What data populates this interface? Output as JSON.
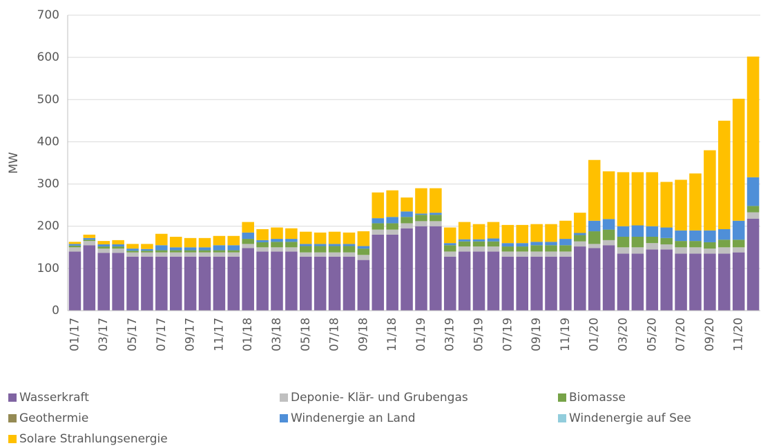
{
  "chart_data": {
    "type": "stacked_bar",
    "y_label": "MW",
    "categories": [
      "01/17",
      null,
      "03/17",
      null,
      "05/17",
      null,
      "07/17",
      null,
      "09/17",
      null,
      "11/17",
      null,
      "01/18",
      null,
      "03/18",
      null,
      "05/18",
      null,
      "07/18",
      null,
      "09/18",
      null,
      "11/18",
      null,
      "01/19",
      null,
      "03/19",
      null,
      "05/19",
      null,
      "07/19",
      null,
      "09/19",
      null,
      "11/19",
      null,
      "01/20",
      null,
      "03/20",
      null,
      "05/20",
      null,
      "07/20",
      null,
      "09/20",
      null,
      "11/20",
      null
    ],
    "ylim": [
      0,
      700
    ],
    "yticks": [
      0,
      100,
      200,
      300,
      400,
      500,
      600,
      700
    ],
    "grid": true,
    "series": [
      {
        "name": "Wasserkraft",
        "color": "#8064a2",
        "values": [
          140,
          155,
          137,
          137,
          128,
          128,
          128,
          128,
          128,
          128,
          128,
          128,
          148,
          140,
          140,
          140,
          128,
          128,
          128,
          128,
          120,
          180,
          180,
          195,
          200,
          200,
          128,
          140,
          140,
          140,
          128,
          128,
          128,
          128,
          128,
          152,
          148,
          155,
          135,
          135,
          145,
          145,
          135,
          135,
          135,
          135,
          138,
          218
        ]
      },
      {
        "name": "Deponie- Klär- und Grubengas",
        "color": "#c0c0c0",
        "values": [
          10,
          10,
          10,
          10,
          10,
          10,
          10,
          10,
          10,
          10,
          10,
          10,
          10,
          10,
          10,
          10,
          10,
          10,
          10,
          10,
          12,
          12,
          12,
          12,
          12,
          12,
          12,
          12,
          12,
          12,
          12,
          12,
          12,
          12,
          12,
          12,
          10,
          12,
          15,
          15,
          15,
          12,
          15,
          15,
          12,
          15,
          12,
          15
        ]
      },
      {
        "name": "Biomasse",
        "color": "#77a348",
        "values": [
          4,
          3,
          5,
          5,
          4,
          4,
          5,
          5,
          5,
          5,
          5,
          5,
          12,
          12,
          13,
          13,
          15,
          15,
          15,
          15,
          15,
          15,
          15,
          15,
          15,
          15,
          15,
          12,
          12,
          12,
          12,
          12,
          15,
          15,
          15,
          15,
          30,
          25,
          25,
          25,
          15,
          15,
          15,
          15,
          15,
          18,
          18,
          15
        ]
      },
      {
        "name": "Geothermie",
        "color": "#948a54",
        "values": [
          0,
          0,
          0,
          0,
          0,
          0,
          0,
          0,
          0,
          0,
          0,
          0,
          0,
          0,
          0,
          0,
          0,
          0,
          0,
          0,
          0,
          0,
          0,
          0,
          0,
          0,
          0,
          0,
          0,
          0,
          0,
          0,
          0,
          0,
          0,
          0,
          0,
          0,
          0,
          0,
          0,
          0,
          0,
          0,
          0,
          0,
          0,
          0
        ]
      },
      {
        "name": "Windenergie an Land",
        "color": "#4f8fd8",
        "values": [
          4,
          4,
          5,
          5,
          5,
          4,
          12,
          7,
          7,
          7,
          12,
          12,
          15,
          5,
          7,
          7,
          5,
          5,
          5,
          5,
          6,
          12,
          15,
          13,
          3,
          5,
          5,
          5,
          5,
          7,
          8,
          8,
          8,
          8,
          15,
          5,
          25,
          25,
          25,
          27,
          25,
          25,
          25,
          25,
          28,
          25,
          45,
          68
        ]
      },
      {
        "name": "Windenergie auf See",
        "color": "#92cddc",
        "values": [
          0,
          0,
          0,
          0,
          0,
          0,
          0,
          0,
          0,
          0,
          0,
          0,
          0,
          0,
          0,
          0,
          0,
          0,
          0,
          0,
          0,
          0,
          0,
          0,
          0,
          0,
          0,
          0,
          0,
          0,
          0,
          0,
          0,
          0,
          0,
          0,
          0,
          0,
          0,
          0,
          0,
          0,
          0,
          0,
          0,
          0,
          0,
          0
        ]
      },
      {
        "name": "Solare Strahlungsenergie",
        "color": "#ffc000",
        "values": [
          5,
          8,
          8,
          10,
          11,
          12,
          27,
          25,
          22,
          22,
          22,
          22,
          25,
          26,
          27,
          25,
          29,
          27,
          29,
          27,
          35,
          61,
          63,
          33,
          60,
          58,
          37,
          41,
          36,
          39,
          43,
          43,
          42,
          42,
          43,
          48,
          144,
          113,
          128,
          126,
          128,
          108,
          120,
          135,
          190,
          257,
          289,
          286
        ]
      }
    ]
  }
}
